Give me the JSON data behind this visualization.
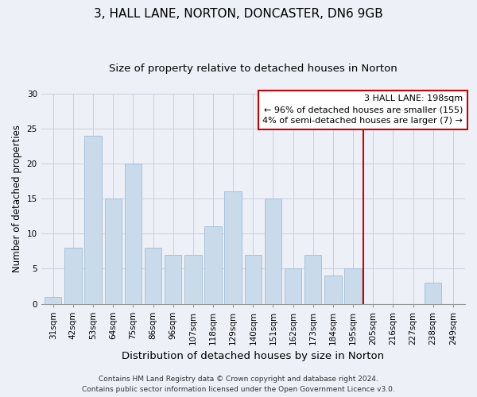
{
  "title": "3, HALL LANE, NORTON, DONCASTER, DN6 9GB",
  "subtitle": "Size of property relative to detached houses in Norton",
  "xlabel": "Distribution of detached houses by size in Norton",
  "ylabel": "Number of detached properties",
  "bar_labels": [
    "31sqm",
    "42sqm",
    "53sqm",
    "64sqm",
    "75sqm",
    "86sqm",
    "96sqm",
    "107sqm",
    "118sqm",
    "129sqm",
    "140sqm",
    "151sqm",
    "162sqm",
    "173sqm",
    "184sqm",
    "195sqm",
    "205sqm",
    "216sqm",
    "227sqm",
    "238sqm",
    "249sqm"
  ],
  "bar_values": [
    1,
    8,
    24,
    15,
    20,
    8,
    7,
    7,
    11,
    16,
    7,
    15,
    5,
    7,
    4,
    5,
    0,
    0,
    0,
    3,
    0
  ],
  "bar_color": "#c9daea",
  "bar_edge_color": "#a0bcd4",
  "vline_x_index": 15.5,
  "vline_color": "#cc0000",
  "ylim": [
    0,
    30
  ],
  "yticks": [
    0,
    5,
    10,
    15,
    20,
    25,
    30
  ],
  "grid_color": "#ccccdd",
  "background_color": "#eef0f8",
  "legend_title": "3 HALL LANE: 198sqm",
  "legend_line1": "← 96% of detached houses are smaller (155)",
  "legend_line2": "4% of semi-detached houses are larger (7) →",
  "legend_box_color": "#cc0000",
  "footer_line1": "Contains HM Land Registry data © Crown copyright and database right 2024.",
  "footer_line2": "Contains public sector information licensed under the Open Government Licence v3.0.",
  "title_fontsize": 11,
  "subtitle_fontsize": 9.5,
  "xlabel_fontsize": 9.5,
  "ylabel_fontsize": 8.5,
  "tick_fontsize": 7.5,
  "legend_fontsize": 8,
  "footer_fontsize": 6.5
}
